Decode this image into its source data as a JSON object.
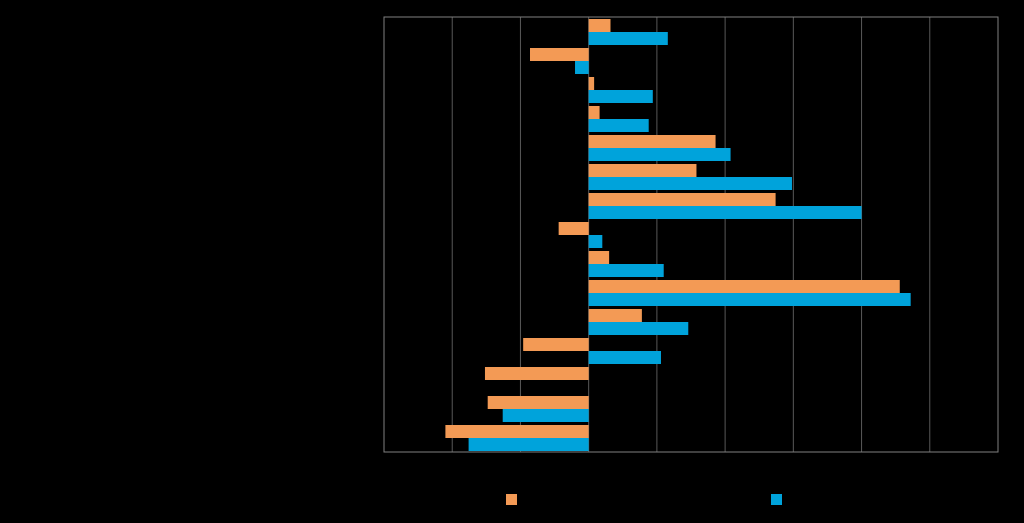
{
  "chart_data": {
    "type": "bar",
    "orientation": "horizontal",
    "categories": [
      "",
      "",
      "",
      "",
      "",
      "",
      "",
      "",
      "",
      "",
      "",
      "",
      "",
      "",
      ""
    ],
    "series": [
      {
        "name": "",
        "color": "#F39A55",
        "values": [
          1.6,
          -4.3,
          0.4,
          0.8,
          9.3,
          7.9,
          13.7,
          -2.2,
          1.5,
          22.8,
          3.9,
          -4.8,
          -7.6,
          -7.4,
          -10.5
        ]
      },
      {
        "name": "",
        "color": "#00A3DB",
        "values": [
          5.8,
          -1.0,
          4.7,
          4.4,
          10.4,
          14.9,
          20.0,
          1.0,
          5.5,
          23.6,
          7.3,
          5.3,
          0.0,
          -6.3,
          -8.8
        ]
      }
    ],
    "xlim": [
      -15,
      30
    ],
    "x_gridlines": [
      -10,
      -5,
      0,
      5,
      10,
      15,
      20,
      25
    ],
    "grid": true,
    "legend": "bottom",
    "title": "",
    "xlabel": "",
    "ylabel": ""
  },
  "colors": {
    "background": "#000000",
    "plot_border": "#808080",
    "gridline": "#595959"
  }
}
